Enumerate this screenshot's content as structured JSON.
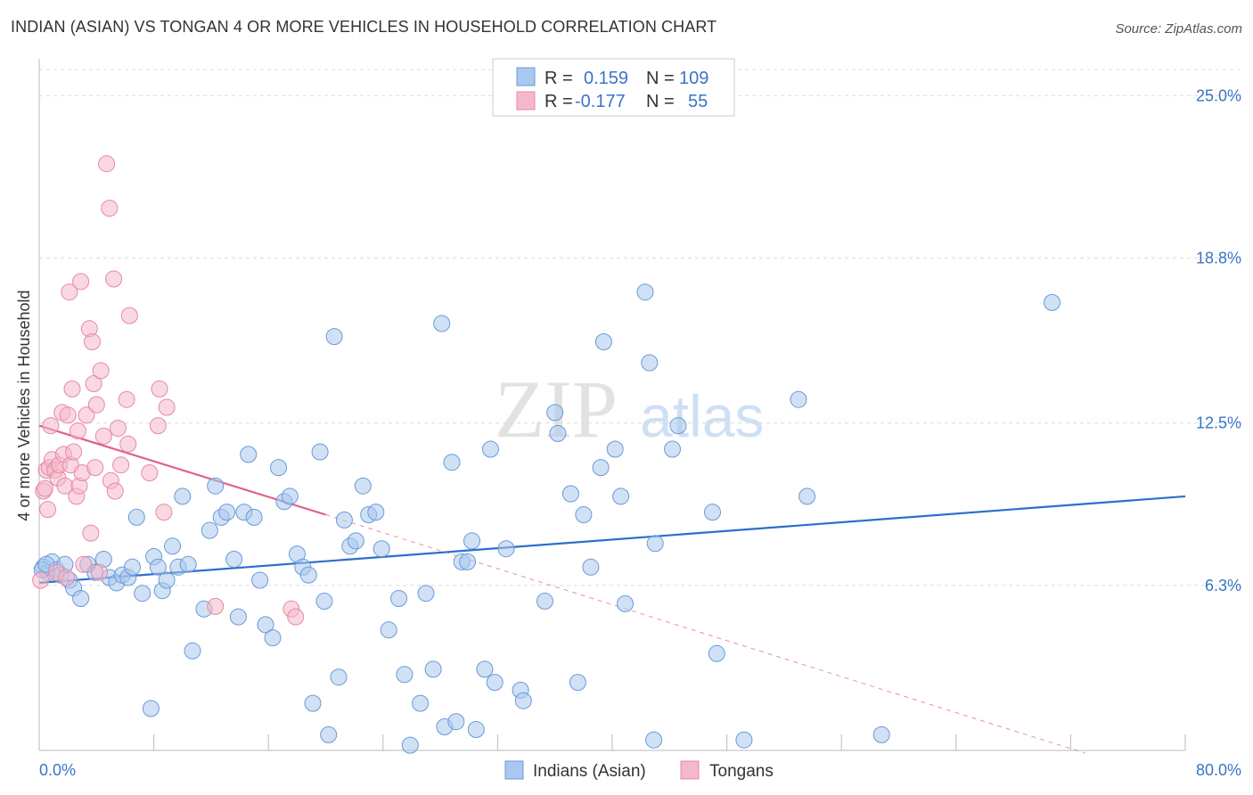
{
  "header": {
    "title": "INDIAN (ASIAN) VS TONGAN 4 OR MORE VEHICLES IN HOUSEHOLD CORRELATION CHART",
    "source": "Source: ZipAtlas.com"
  },
  "watermark": {
    "zip": "ZIP",
    "atlas": "atlas"
  },
  "colors": {
    "blue_fill": "#a9c8ef",
    "blue_stroke": "#6a9ad6",
    "blue_line": "#2a6fcc",
    "pink_fill": "#f5b8cb",
    "pink_stroke": "#e589a6",
    "pink_line": "#e0608a",
    "label_blue": "#3a74c8",
    "grid": "#dcdcdc"
  },
  "stats_legend": {
    "rows": [
      {
        "r_label": "R =",
        "r_value": "0.159",
        "n_label": "N =",
        "n_value": "109"
      },
      {
        "r_label": "R =",
        "r_value": "-0.177",
        "n_label": "N =",
        "n_value": "55"
      }
    ]
  },
  "bottom_legend": {
    "items": [
      "Indians (Asian)",
      "Tongans"
    ]
  },
  "chart_data": {
    "type": "scatter",
    "title": "INDIAN (ASIAN) VS TONGAN 4 OR MORE VEHICLES IN HOUSEHOLD CORRELATION CHART",
    "xlabel": "",
    "ylabel": "4 or more Vehicles in Household",
    "xlim": [
      0,
      80
    ],
    "ylim": [
      0,
      26.2
    ],
    "x_tick_labels": [
      "0.0%",
      "80.0%"
    ],
    "y_ticks": [
      6.3,
      12.5,
      18.8,
      25.0
    ],
    "y_tick_labels": [
      "6.3%",
      "12.5%",
      "18.8%",
      "25.0%"
    ],
    "grid": true,
    "legend_placement": "bottom-center",
    "series": [
      {
        "name": "Indians (Asian)",
        "R": 0.159,
        "N": 109,
        "trend": {
          "x": [
            0,
            80
          ],
          "y": [
            6.4,
            9.7
          ]
        },
        "points": [
          [
            0.3,
            7.0
          ],
          [
            0.6,
            6.8
          ],
          [
            0.9,
            7.2
          ],
          [
            1.2,
            6.9
          ],
          [
            1.5,
            6.7
          ],
          [
            1.8,
            7.1
          ],
          [
            2.1,
            6.5
          ],
          [
            2.4,
            6.2
          ],
          [
            2.9,
            5.8
          ],
          [
            3.4,
            7.1
          ],
          [
            3.9,
            6.8
          ],
          [
            4.5,
            7.3
          ],
          [
            4.9,
            6.6
          ],
          [
            5.4,
            6.4
          ],
          [
            5.8,
            6.7
          ],
          [
            6.2,
            6.6
          ],
          [
            6.5,
            7.0
          ],
          [
            6.8,
            8.9
          ],
          [
            7.2,
            6.0
          ],
          [
            7.8,
            1.6
          ],
          [
            8.0,
            7.4
          ],
          [
            8.3,
            7.0
          ],
          [
            8.6,
            6.1
          ],
          [
            8.9,
            6.5
          ],
          [
            9.3,
            7.8
          ],
          [
            9.7,
            7.0
          ],
          [
            10.0,
            9.7
          ],
          [
            10.4,
            7.1
          ],
          [
            10.7,
            3.8
          ],
          [
            11.5,
            5.4
          ],
          [
            11.9,
            8.4
          ],
          [
            12.3,
            10.1
          ],
          [
            12.7,
            8.9
          ],
          [
            13.1,
            9.1
          ],
          [
            13.6,
            7.3
          ],
          [
            13.9,
            5.1
          ],
          [
            14.3,
            9.1
          ],
          [
            14.6,
            11.3
          ],
          [
            15.0,
            8.9
          ],
          [
            15.4,
            6.5
          ],
          [
            15.8,
            4.8
          ],
          [
            16.3,
            4.3
          ],
          [
            16.7,
            10.8
          ],
          [
            17.1,
            9.5
          ],
          [
            17.5,
            9.7
          ],
          [
            18.0,
            7.5
          ],
          [
            18.4,
            7.0
          ],
          [
            18.8,
            6.7
          ],
          [
            19.1,
            1.8
          ],
          [
            19.6,
            11.4
          ],
          [
            19.9,
            5.7
          ],
          [
            20.2,
            0.6
          ],
          [
            20.6,
            15.8
          ],
          [
            20.9,
            2.8
          ],
          [
            21.3,
            8.8
          ],
          [
            21.7,
            7.8
          ],
          [
            22.1,
            8.0
          ],
          [
            22.6,
            10.1
          ],
          [
            23.0,
            9.0
          ],
          [
            23.5,
            9.1
          ],
          [
            23.9,
            7.7
          ],
          [
            24.4,
            4.6
          ],
          [
            25.1,
            5.8
          ],
          [
            25.5,
            2.9
          ],
          [
            25.9,
            0.2
          ],
          [
            26.6,
            1.8
          ],
          [
            27.0,
            6.0
          ],
          [
            27.5,
            3.1
          ],
          [
            28.1,
            16.3
          ],
          [
            28.3,
            0.9
          ],
          [
            28.8,
            11.0
          ],
          [
            29.1,
            1.1
          ],
          [
            29.5,
            7.2
          ],
          [
            29.9,
            7.2
          ],
          [
            30.2,
            8.0
          ],
          [
            30.5,
            0.8
          ],
          [
            31.1,
            3.1
          ],
          [
            31.5,
            11.5
          ],
          [
            31.8,
            2.6
          ],
          [
            32.6,
            7.7
          ],
          [
            33.6,
            2.3
          ],
          [
            33.8,
            1.9
          ],
          [
            35.3,
            5.7
          ],
          [
            36.0,
            12.9
          ],
          [
            36.2,
            12.1
          ],
          [
            37.1,
            9.8
          ],
          [
            37.6,
            2.6
          ],
          [
            38.0,
            9.0
          ],
          [
            38.5,
            7.0
          ],
          [
            39.2,
            10.8
          ],
          [
            39.4,
            15.6
          ],
          [
            40.2,
            11.5
          ],
          [
            40.6,
            9.7
          ],
          [
            40.9,
            5.6
          ],
          [
            42.3,
            17.5
          ],
          [
            42.6,
            14.8
          ],
          [
            42.9,
            0.4
          ],
          [
            43.0,
            7.9
          ],
          [
            44.2,
            11.5
          ],
          [
            44.6,
            12.4
          ],
          [
            47.0,
            9.1
          ],
          [
            47.3,
            3.7
          ],
          [
            49.2,
            0.4
          ],
          [
            53.0,
            13.4
          ],
          [
            53.6,
            9.7
          ],
          [
            58.8,
            0.6
          ],
          [
            70.7,
            17.1
          ],
          [
            0.2,
            6.9
          ],
          [
            0.5,
            7.1
          ]
        ]
      },
      {
        "name": "Tongans",
        "R": -0.177,
        "N": 55,
        "trend": {
          "x": [
            0,
            20
          ],
          "y": [
            12.4,
            9.0
          ]
        },
        "trend_extension": {
          "x": [
            20,
            73
          ],
          "y": [
            9.0,
            -0.1
          ]
        },
        "points": [
          [
            0.1,
            6.5
          ],
          [
            0.3,
            9.9
          ],
          [
            0.4,
            10.0
          ],
          [
            0.5,
            10.7
          ],
          [
            0.6,
            9.2
          ],
          [
            0.7,
            10.8
          ],
          [
            0.8,
            12.4
          ],
          [
            0.9,
            11.1
          ],
          [
            1.1,
            10.7
          ],
          [
            1.2,
            6.8
          ],
          [
            1.3,
            10.4
          ],
          [
            1.4,
            10.9
          ],
          [
            1.6,
            12.9
          ],
          [
            1.7,
            11.3
          ],
          [
            1.8,
            10.1
          ],
          [
            1.9,
            6.6
          ],
          [
            2.0,
            12.8
          ],
          [
            2.1,
            17.5
          ],
          [
            2.2,
            10.9
          ],
          [
            2.3,
            13.8
          ],
          [
            2.4,
            11.4
          ],
          [
            2.6,
            9.7
          ],
          [
            2.7,
            12.2
          ],
          [
            2.8,
            10.1
          ],
          [
            2.9,
            17.9
          ],
          [
            3.0,
            10.6
          ],
          [
            3.1,
            7.1
          ],
          [
            3.3,
            12.8
          ],
          [
            3.5,
            16.1
          ],
          [
            3.6,
            8.3
          ],
          [
            3.7,
            15.6
          ],
          [
            3.8,
            14.0
          ],
          [
            3.9,
            10.8
          ],
          [
            4.0,
            13.2
          ],
          [
            4.2,
            6.8
          ],
          [
            4.3,
            14.5
          ],
          [
            4.5,
            12.0
          ],
          [
            4.7,
            22.4
          ],
          [
            4.9,
            20.7
          ],
          [
            5.0,
            10.3
          ],
          [
            5.2,
            18.0
          ],
          [
            5.3,
            9.9
          ],
          [
            5.5,
            12.3
          ],
          [
            5.7,
            10.9
          ],
          [
            6.1,
            13.4
          ],
          [
            6.2,
            11.7
          ],
          [
            6.3,
            16.6
          ],
          [
            7.7,
            10.6
          ],
          [
            8.3,
            12.4
          ],
          [
            8.4,
            13.8
          ],
          [
            8.7,
            9.1
          ],
          [
            8.9,
            13.1
          ],
          [
            12.3,
            5.5
          ],
          [
            17.6,
            5.4
          ],
          [
            17.9,
            5.1
          ]
        ]
      }
    ]
  }
}
